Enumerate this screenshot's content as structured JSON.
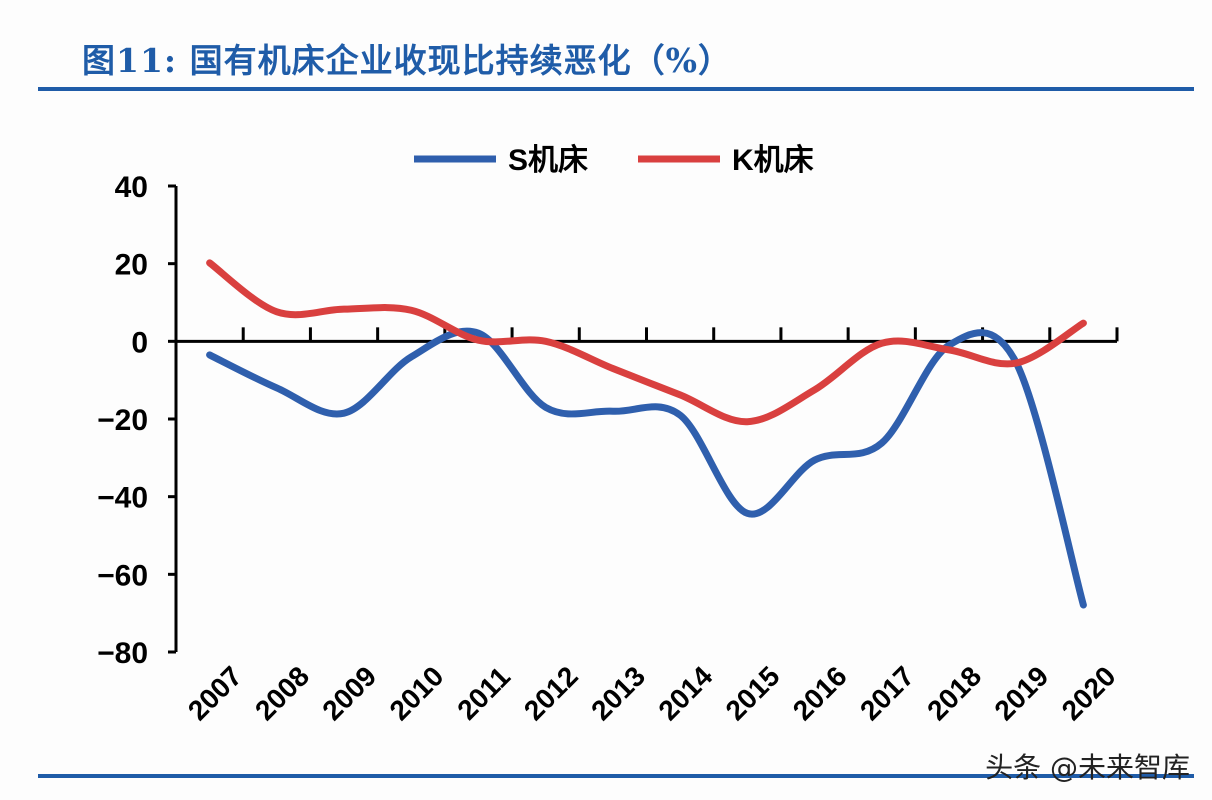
{
  "title": "图11: 国有机床企业收现比持续恶化（%）",
  "watermark": "头条 @未来智库",
  "chart_data": {
    "type": "line",
    "title": "图11: 国有机床企业收现比持续恶化（%）",
    "categories": [
      "2007",
      "2008",
      "2009",
      "2010",
      "2011",
      "2012",
      "2013",
      "2014",
      "2015",
      "2016",
      "2017",
      "2018",
      "2019",
      "2020"
    ],
    "series": [
      {
        "name": "S机床",
        "color": "#2f5fad",
        "values": [
          -3.5,
          -12,
          -18.5,
          -4,
          2.1,
          -17,
          -18,
          -19,
          -44.3,
          -30.6,
          -26.2,
          -1,
          -5.5,
          -67.9
        ]
      },
      {
        "name": "K机床",
        "color": "#d9403f",
        "values": [
          20.2,
          7.6,
          8.3,
          8,
          0.3,
          0,
          -7,
          -13.8,
          -20.7,
          -12.5,
          -0.5,
          -2.2,
          -5.6,
          4.7
        ]
      }
    ],
    "yticks": [
      "40",
      "20",
      "0",
      "-20",
      "-40",
      "-60",
      "-80"
    ],
    "ylim": [
      -80,
      40
    ],
    "grid": false,
    "legend": "top-center",
    "smooth": true
  }
}
